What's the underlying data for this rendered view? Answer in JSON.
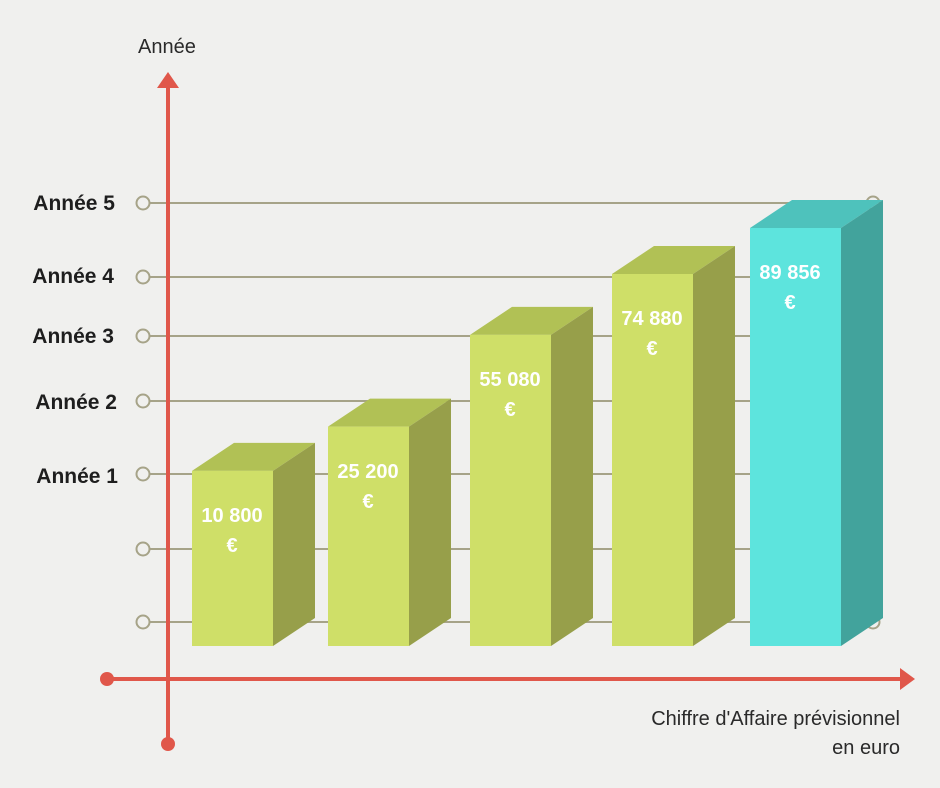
{
  "chart_data": {
    "type": "bar",
    "title": "",
    "ylabel": "Année",
    "xlabel": [
      "Chiffre d'Affaire prévisionnel",
      "en euro"
    ],
    "categories": [
      "Année 1",
      "Année 2",
      "Année 3",
      "Année 4",
      "Année 5"
    ],
    "values": [
      10800,
      25200,
      55080,
      74880,
      89856
    ],
    "value_labels": [
      [
        "10 800",
        "€"
      ],
      [
        "25 200",
        "€"
      ],
      [
        "55 080",
        "€"
      ],
      [
        "74 880",
        "€"
      ],
      [
        "89 856",
        "€"
      ]
    ],
    "y_tick_labels": [
      "Année 5",
      "Année 4",
      "Année 3",
      "Année 2",
      "Année 1"
    ],
    "grid": true,
    "unit": "€",
    "colors": {
      "axis": "#e0574a",
      "grid": "#a6a388",
      "bar_front": "#cfdf68",
      "bar_top": "#b1c155",
      "bar_side": "#979f4a",
      "highlight_front": "#5de4dd",
      "highlight_top": "#4ec2bc",
      "highlight_side": "#42a39c"
    }
  }
}
